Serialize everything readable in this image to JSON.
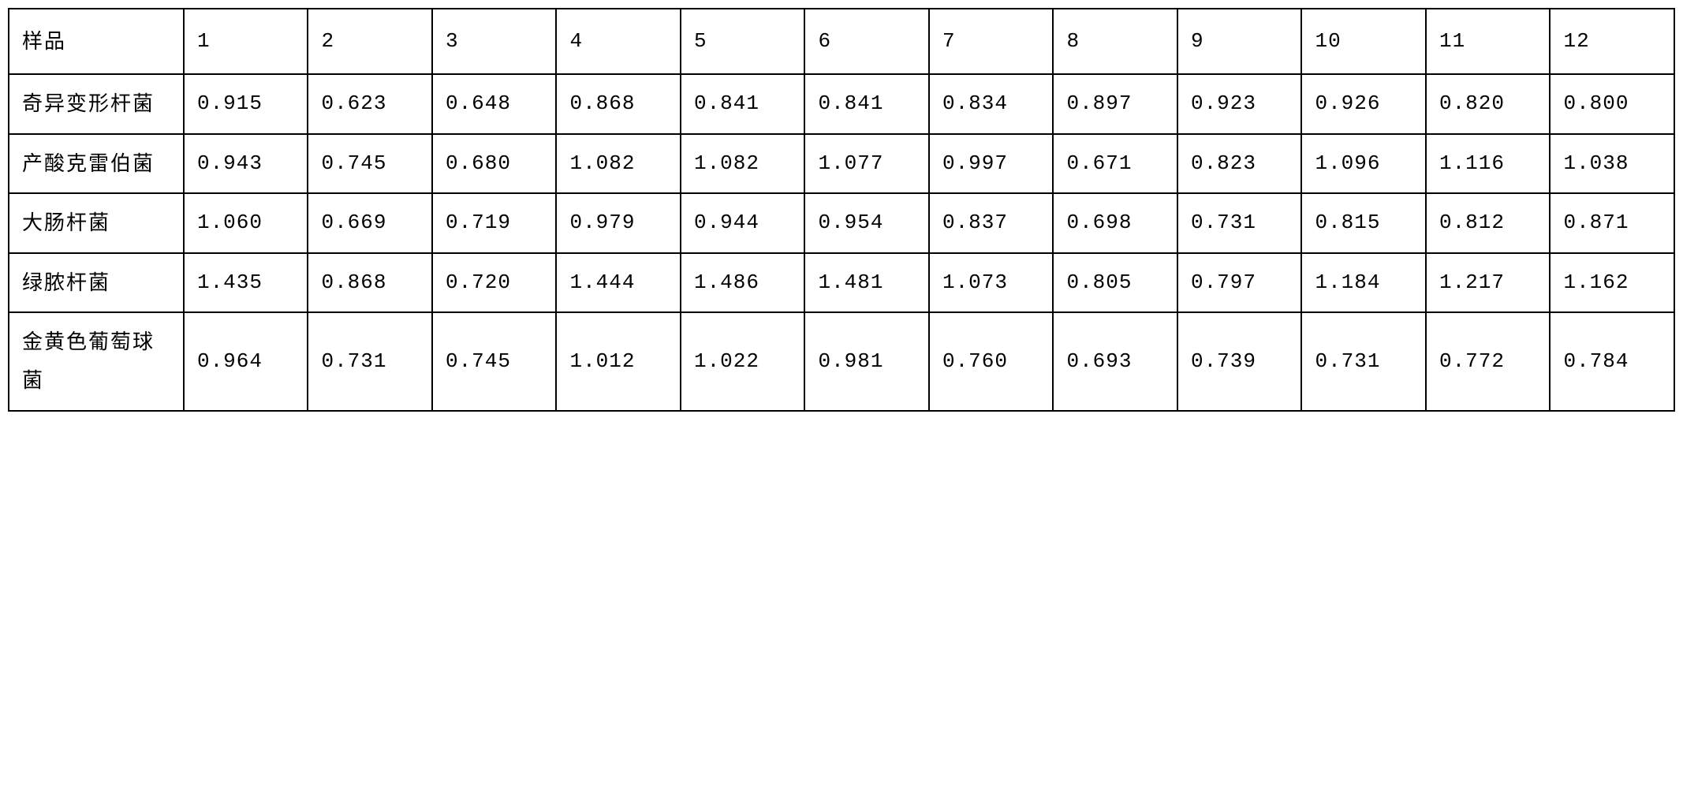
{
  "table": {
    "type": "table",
    "header_label": "样品",
    "column_headers": [
      "1",
      "2",
      "3",
      "4",
      "5",
      "6",
      "7",
      "8",
      "9",
      "10",
      "11",
      "12"
    ],
    "rows": [
      {
        "label": "奇异变形杆菌",
        "values": [
          "0.915",
          "0.623",
          "0.648",
          "0.868",
          "0.841",
          "0.841",
          "0.834",
          "0.897",
          "0.923",
          "0.926",
          "0.820",
          "0.800"
        ]
      },
      {
        "label": "产酸克雷伯菌",
        "values": [
          "0.943",
          "0.745",
          "0.680",
          "1.082",
          "1.082",
          "1.077",
          "0.997",
          "0.671",
          "0.823",
          "1.096",
          "1.116",
          "1.038"
        ]
      },
      {
        "label": "大肠杆菌",
        "values": [
          "1.060",
          "0.669",
          "0.719",
          "0.979",
          "0.944",
          "0.954",
          "0.837",
          "0.698",
          "0.731",
          "0.815",
          "0.812",
          "0.871"
        ]
      },
      {
        "label": "绿脓杆菌",
        "values": [
          "1.435",
          "0.868",
          "0.720",
          "1.444",
          "1.486",
          "1.481",
          "1.073",
          "0.805",
          "0.797",
          "1.184",
          "1.217",
          "1.162"
        ]
      },
      {
        "label": "金黄色葡萄球菌",
        "values": [
          "0.964",
          "0.731",
          "0.745",
          "1.012",
          "1.022",
          "0.981",
          "0.760",
          "0.693",
          "0.739",
          "0.731",
          "0.772",
          "0.784"
        ]
      }
    ],
    "styling": {
      "border_color": "#000000",
      "border_width": 2,
      "background_color": "#ffffff",
      "text_color": "#000000",
      "header_col_width_pct": 10.5,
      "data_col_width_pct": 7.45,
      "font_size": 26,
      "font_family_header": "KaiTi",
      "font_family_data": "Courier New",
      "line_height": 1.9,
      "cell_padding": 14
    }
  }
}
